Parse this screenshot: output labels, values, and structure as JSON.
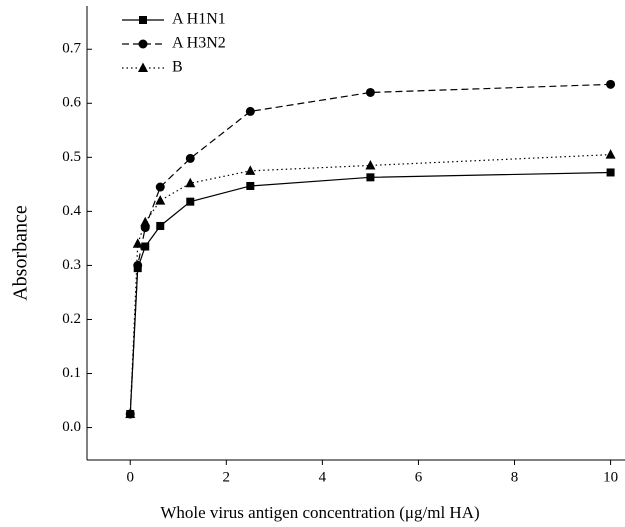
{
  "chart_data": {
    "type": "line",
    "x_label": "Whole virus antigen concentration  (μg/ml HA)",
    "y_label": "Absorbance",
    "x": [
      0,
      0.156,
      0.3125,
      0.625,
      1.25,
      2.5,
      5,
      10
    ],
    "series": [
      {
        "name": "A H1N1",
        "color": "#000000",
        "dash": "solid",
        "marker": "square",
        "values": [
          0.025,
          0.295,
          0.335,
          0.373,
          0.418,
          0.447,
          0.463,
          0.472
        ]
      },
      {
        "name": "A H3N2",
        "color": "#000000",
        "dash": "dashed",
        "marker": "circle",
        "values": [
          0.025,
          0.3,
          0.37,
          0.445,
          0.498,
          0.585,
          0.62,
          0.635
        ]
      },
      {
        "name": "B",
        "color": "#000000",
        "dash": "dotted",
        "marker": "triangle",
        "values": [
          0.025,
          0.34,
          0.38,
          0.42,
          0.452,
          0.475,
          0.485,
          0.505
        ]
      }
    ],
    "xlim": [
      -0.9,
      10.3
    ],
    "xticks": [
      0,
      2,
      4,
      6,
      8,
      10
    ],
    "ylim": [
      -0.06,
      0.78
    ],
    "yticks": [
      {
        "value": 0,
        "label": "0.0"
      },
      0.1,
      0.2,
      0.3,
      0.4,
      0.5,
      0.6,
      0.7
    ],
    "legend": "top-left"
  }
}
